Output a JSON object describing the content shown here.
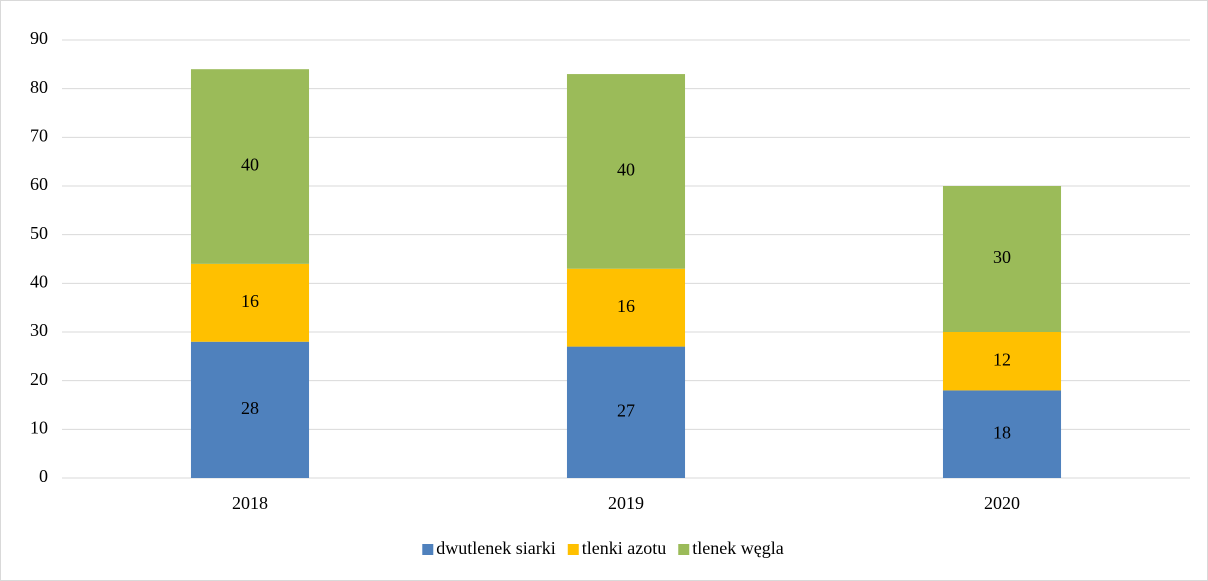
{
  "chart_data": {
    "type": "stacked_bar",
    "categories": [
      "2018",
      "2019",
      "2020"
    ],
    "series": [
      {
        "name": "dwutlenek siarki",
        "color": "#4f81bd",
        "values": [
          28,
          27,
          18
        ]
      },
      {
        "name": "tlenki azotu",
        "color": "#ffc000",
        "values": [
          16,
          16,
          12
        ]
      },
      {
        "name": "tlenek węgla",
        "color": "#9bbb59",
        "values": [
          40,
          40,
          30
        ]
      }
    ],
    "ylim": [
      0,
      90
    ],
    "yticks": [
      0,
      10,
      20,
      30,
      40,
      50,
      60,
      70,
      80,
      90
    ],
    "grid": true,
    "legend": "bottom"
  }
}
